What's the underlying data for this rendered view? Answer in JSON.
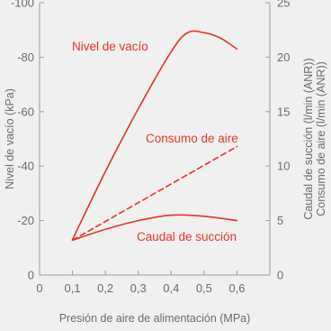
{
  "chart_data": {
    "type": "line",
    "x": [
      0.1,
      0.2,
      0.3,
      0.4,
      0.5,
      0.6
    ],
    "x_ticks": [
      "0",
      "0,1",
      "0,2",
      "0,3",
      "0,4",
      "0,5",
      "0,6"
    ],
    "xlabel": "Presión de aire de alimentación (MPa)",
    "xlim": [
      0,
      0.7
    ],
    "y_left": {
      "label": "Nivel de vacío (kPa)",
      "ticks": [
        "0",
        "-20",
        "-40",
        "-60",
        "-80",
        "-100"
      ],
      "lim": [
        0,
        -100
      ]
    },
    "y_right": {
      "label_lines": [
        "Caudal de succión (l/min (ANR))",
        "Consumo de aire (l/min (ANR))"
      ],
      "ticks": [
        "0",
        "5",
        "10",
        "15",
        "20",
        "25"
      ],
      "lim": [
        0,
        25
      ]
    },
    "series": [
      {
        "name": "Nivel de vacío",
        "axis": "left",
        "style": "solid",
        "points": [
          [
            0.1,
            -13
          ],
          [
            0.2,
            -38
          ],
          [
            0.3,
            -61
          ],
          [
            0.4,
            -82
          ],
          [
            0.45,
            -89
          ],
          [
            0.5,
            -89
          ],
          [
            0.55,
            -87
          ],
          [
            0.6,
            -83
          ]
        ]
      },
      {
        "name": "Consumo de aire",
        "axis": "right",
        "style": "dashed",
        "points": [
          [
            0.1,
            3.2
          ],
          [
            0.6,
            11.8
          ]
        ]
      },
      {
        "name": "Caudal de succión",
        "axis": "right",
        "style": "solid",
        "points": [
          [
            0.1,
            3.2
          ],
          [
            0.2,
            4.2
          ],
          [
            0.3,
            5.0
          ],
          [
            0.4,
            5.5
          ],
          [
            0.5,
            5.4
          ],
          [
            0.6,
            5.0
          ]
        ]
      }
    ],
    "colors": {
      "series": "#e8322a",
      "axis": "#9a9a9a",
      "text": "#6b6b6b",
      "background": "#f0f0f0"
    },
    "grid": false
  }
}
